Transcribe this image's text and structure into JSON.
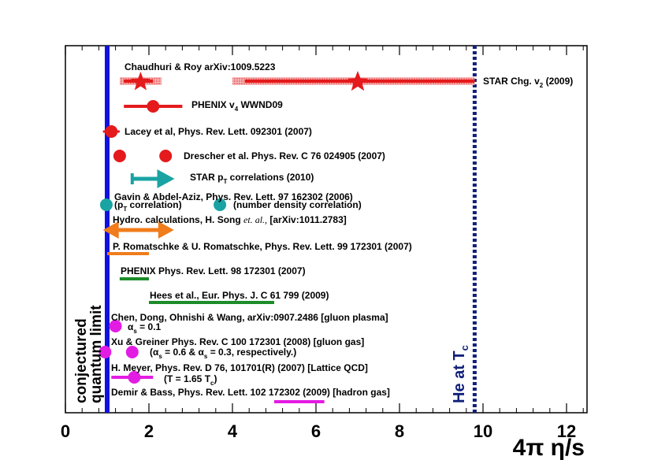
{
  "chart_data": {
    "type": "scatter",
    "title": "",
    "xlabel": "4π η/s",
    "xlabel_parts": {
      "prefix": "4π η",
      "suffix": "/s"
    },
    "ylabel": "",
    "xlim": [
      0,
      12.5
    ],
    "xticks": [
      0,
      2,
      4,
      6,
      8,
      10,
      12
    ],
    "xtick_labels": [
      "0",
      "2",
      "4",
      "6",
      "8",
      "10",
      "12"
    ],
    "yrange": "categorical rows (top to bottom)",
    "reference_lines": [
      {
        "name": "conjectured quantum limit",
        "x": 1.0,
        "style": "solid",
        "color": "#1010e0",
        "text_line1": "conjectured",
        "text_line2": "quantum limit"
      },
      {
        "name": "He at Tc",
        "x": 9.8,
        "style": "dotted",
        "color": "#10207a",
        "text_main": "He at T",
        "text_sub": "c"
      }
    ],
    "colors": {
      "red": "#e41a1c",
      "teal": "#1aa3a3",
      "orange": "#f07c1c",
      "green": "#1c8c28",
      "magenta": "#e31ce3",
      "blue": "#1010e0",
      "navy": "#10207a"
    },
    "labels": {
      "chaudhuri": "Chaudhuri & Roy arXiv:1009.5223",
      "star_chg_main": "STAR Chg. v",
      "star_chg_sub": "2",
      "star_chg_tail": " (2009)",
      "phenix_v4_main": "PHENIX v",
      "phenix_v4_sub": "4",
      "phenix_v4_tail": " WWND09",
      "lacey": "Lacey et al, Phys. Rev. Lett. 092301 (2007)",
      "drescher": "Drescher et al. Phys. Rev. C 76 024905 (2007)",
      "star_pt_main": "STAR p",
      "star_pt_sub": "T",
      "star_pt_tail": " correlations (2010)",
      "gavin": "Gavin & Abdel-Aziz, Phys. Rev. Lett. 97 162302 (2006)",
      "gavin_pt_open": "(p",
      "gavin_pt_sub": "T",
      "gavin_pt_tail": " correlation)",
      "gavin_num": "(number density correlation)",
      "song_main": "Hydro. calculations, H. Song ",
      "song_italic": "et. al.,",
      "song_tail": " [arXiv:1011.2783]",
      "romatschke": "P. Romatschke & U. Romatschke, Phys. Rev. Lett. 99 172301 (2007)",
      "phenix_prl": "PHENIX Phys. Rev. Lett. 98 172301 (2007)",
      "hees": "Hees et al., Eur. Phys. J. C 61 799 (2009)",
      "chen": "Chen, Dong, Ohnishi & Wang, arXiv:0907.2486 [gluon plasma]",
      "chen_alpha_main": "α",
      "chen_alpha_sub": "s",
      "chen_alpha_tail": " = 0.1",
      "xu": "Xu & Greiner Phys. Rev. C 100 172301 (2008) [gluon gas]",
      "xu_alpha_a": "(α",
      "xu_alpha_b": " = 0.6 & α",
      "xu_alpha_c": " = 0.3, respectively.)",
      "xu_alpha_sub": "s",
      "meyer": "H. Meyer, Phys. Rev. D 76, 101701(R) (2007) [Lattice QCD]",
      "meyer_t_main": "(T = 1.65 T",
      "meyer_t_sub": "c",
      "meyer_t_tail": ")",
      "demir": "Demir & Bass, Phys. Rev. Lett. 102 172302 (2009) [hadron gas]"
    },
    "series": [
      {
        "name": "Chaudhuri & Roy",
        "color": "red",
        "type": "star",
        "points": [
          1.8,
          7.0
        ],
        "ranges": [
          [
            1.3,
            2.3
          ],
          [
            4.0,
            9.8
          ]
        ]
      },
      {
        "name": "STAR Chg. v2 (2009)",
        "color": "red",
        "type": "range",
        "range": [
          4.3,
          9.8
        ]
      },
      {
        "name": "PHENIX v4 WWND09",
        "color": "red",
        "type": "point-with-error",
        "x": 2.1,
        "range": [
          1.4,
          2.8
        ]
      },
      {
        "name": "Lacey et al",
        "color": "red",
        "type": "point-with-error",
        "x": 1.1,
        "range": [
          0.9,
          1.3
        ]
      },
      {
        "name": "Drescher et al.",
        "color": "red",
        "type": "points",
        "points": [
          1.3,
          2.4
        ]
      },
      {
        "name": "STAR pT correlations (2010)",
        "color": "teal",
        "type": "arrow",
        "range": [
          1.6,
          2.5
        ]
      },
      {
        "name": "Gavin & Abdel-Aziz",
        "color": "teal",
        "type": "points",
        "points": [
          0.98,
          3.7
        ]
      },
      {
        "name": "Hydro. calculations, H. Song",
        "color": "orange",
        "type": "double-arrow",
        "range": [
          0.9,
          2.6
        ]
      },
      {
        "name": "P. Romatschke & U. Romatschke",
        "color": "orange",
        "type": "range",
        "range": [
          1.0,
          2.0
        ]
      },
      {
        "name": "PHENIX Phys. Rev. Lett.",
        "color": "green",
        "type": "range",
        "range": [
          1.3,
          2.0
        ]
      },
      {
        "name": "Hees et al.",
        "color": "green",
        "type": "range",
        "range": [
          2.0,
          5.0
        ]
      },
      {
        "name": "Chen, Dong, Ohnishi & Wang",
        "color": "magenta",
        "type": "point",
        "x": 1.2
      },
      {
        "name": "Xu & Greiner",
        "color": "magenta",
        "type": "points",
        "points": [
          0.95,
          1.6
        ]
      },
      {
        "name": "H. Meyer",
        "color": "magenta",
        "type": "point-with-error",
        "x": 1.65,
        "range": [
          1.1,
          2.1
        ]
      },
      {
        "name": "Demir & Bass",
        "color": "magenta",
        "type": "range",
        "range": [
          5.0,
          6.2
        ]
      }
    ]
  }
}
